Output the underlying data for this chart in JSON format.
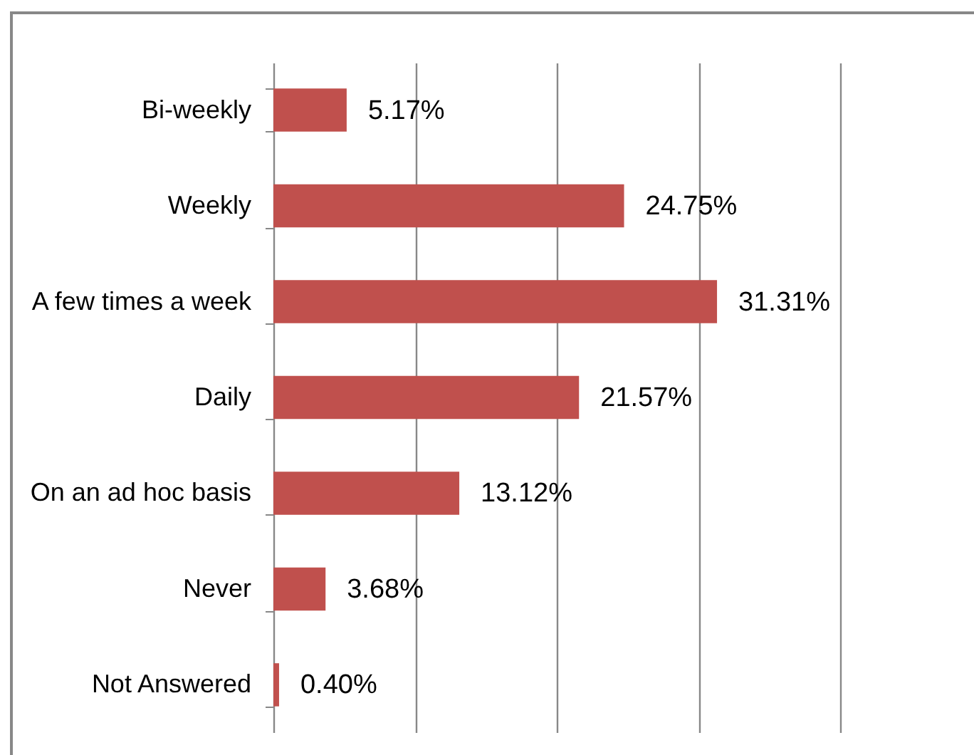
{
  "chart_data": {
    "type": "bar",
    "orientation": "horizontal",
    "categories": [
      "Bi-weekly",
      "Weekly",
      "A few times a week",
      "Daily",
      "On an ad hoc basis",
      "Never",
      "Not Answered"
    ],
    "values": [
      5.17,
      24.75,
      31.31,
      21.57,
      13.12,
      3.68,
      0.4
    ],
    "value_labels": [
      "5.17%",
      "24.75%",
      "31.31%",
      "21.57%",
      "13.12%",
      "3.68%",
      "0.40%"
    ],
    "color": "#c0504d",
    "xlim": [
      0,
      40
    ],
    "xticks": [
      {
        "value": 0,
        "label": null
      },
      {
        "value": 10,
        "label": null
      },
      {
        "value": 20,
        "label": null
      },
      {
        "value": 30,
        "label": null
      },
      {
        "value": 40,
        "label": null
      }
    ],
    "tick_labels": "y",
    "grid": "x"
  }
}
